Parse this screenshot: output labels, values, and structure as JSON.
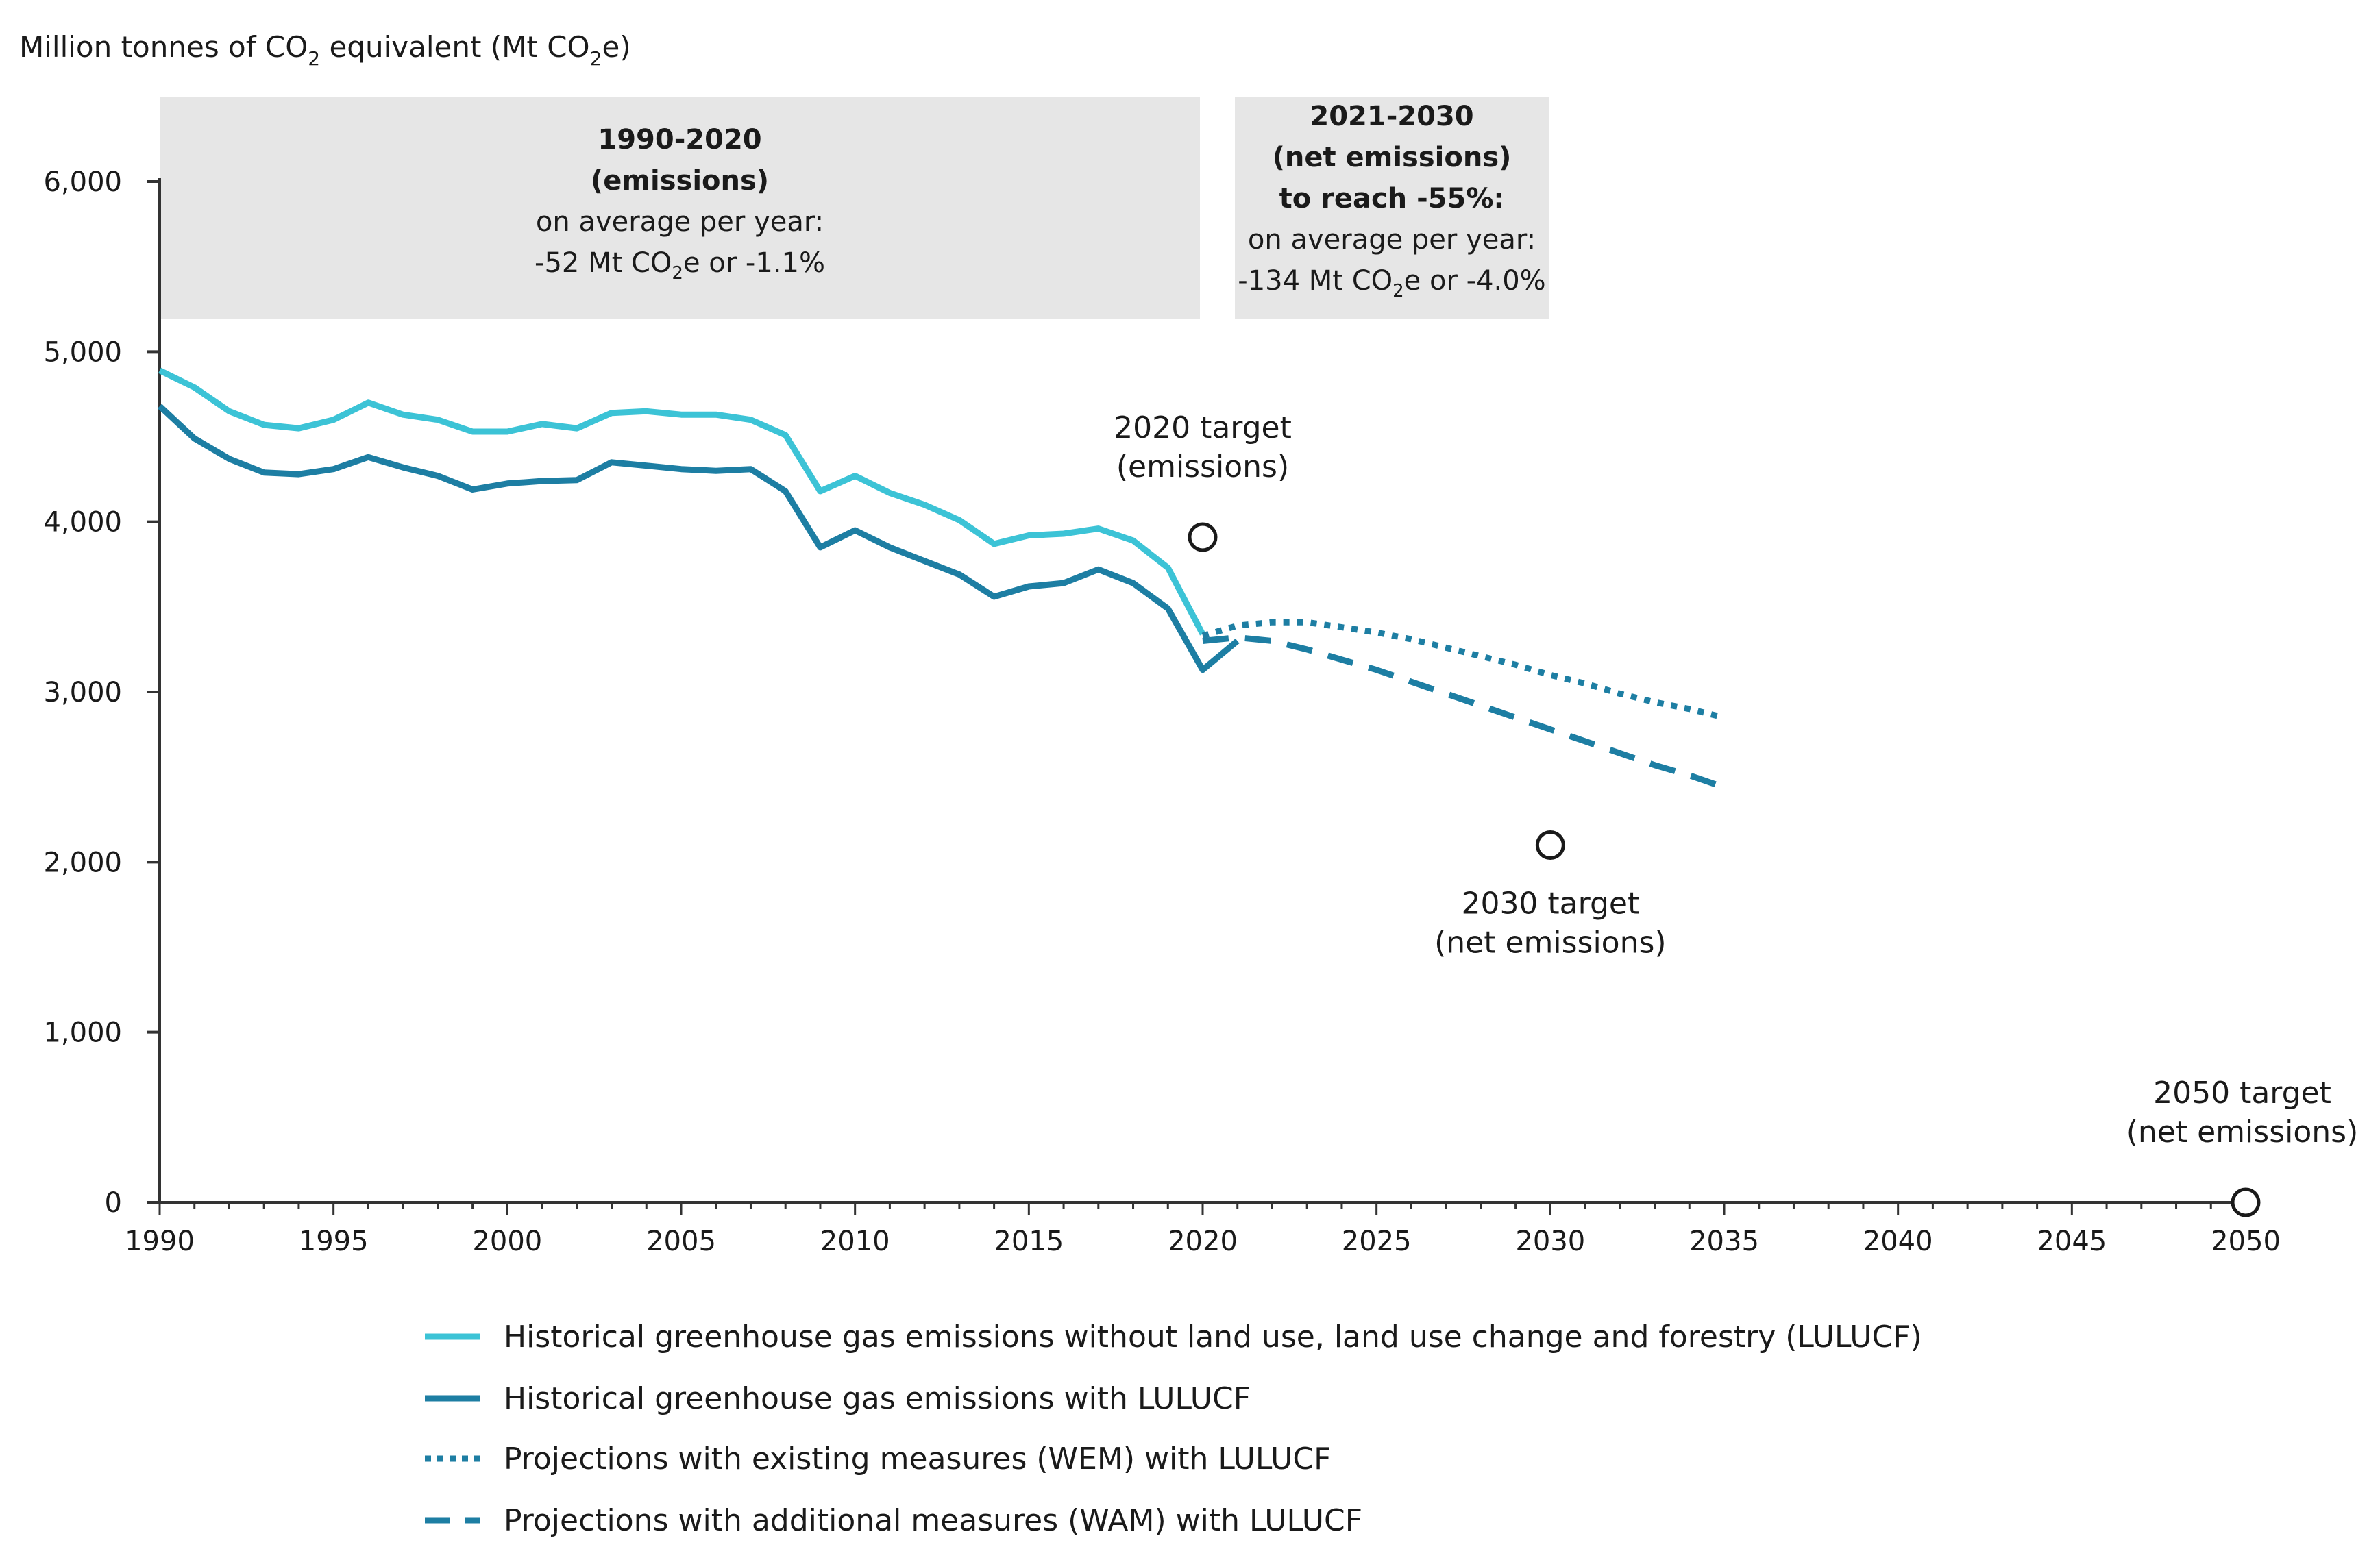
{
  "chart_data": {
    "type": "line",
    "ylabel_parts": [
      "Million tonnes of CO",
      "2",
      " equivalent (Mt CO",
      "2",
      "e)"
    ],
    "xlim": [
      1990,
      2050
    ],
    "ylim": [
      0,
      6000
    ],
    "x_ticks": [
      "1990",
      "1995",
      "2000",
      "2005",
      "2010",
      "2015",
      "2020",
      "2025",
      "2030",
      "2035",
      "2040",
      "2045",
      "2050"
    ],
    "y_ticks": [
      "0",
      "1,000",
      "2,000",
      "3,000",
      "4,000",
      "5,000",
      "6,000"
    ],
    "series": [
      {
        "name": "Historical greenhouse gas emissions without land use, land use change and forestry (LULUCF)",
        "style": "solid",
        "color": "#3cc3d6",
        "x": [
          1990,
          1991,
          1992,
          1993,
          1994,
          1995,
          1996,
          1997,
          1998,
          1999,
          2000,
          2001,
          2002,
          2003,
          2004,
          2005,
          2006,
          2007,
          2008,
          2009,
          2010,
          2011,
          2012,
          2013,
          2014,
          2015,
          2016,
          2017,
          2018,
          2019,
          2020
        ],
        "values": [
          4890,
          4790,
          4650,
          4570,
          4550,
          4600,
          4700,
          4630,
          4600,
          4530,
          4530,
          4575,
          4550,
          4640,
          4650,
          4630,
          4630,
          4600,
          4510,
          4180,
          4270,
          4170,
          4100,
          4010,
          3870,
          3920,
          3930,
          3960,
          3890,
          3730,
          3340
        ]
      },
      {
        "name": "Historical greenhouse gas emissions with LULUCF",
        "style": "solid",
        "color": "#1d7ea3",
        "x": [
          1990,
          1991,
          1992,
          1993,
          1994,
          1995,
          1996,
          1997,
          1998,
          1999,
          2000,
          2001,
          2002,
          2003,
          2004,
          2005,
          2006,
          2007,
          2008,
          2009,
          2010,
          2011,
          2012,
          2013,
          2014,
          2015,
          2016,
          2017,
          2018,
          2019,
          2020,
          2021
        ],
        "values": [
          4680,
          4490,
          4370,
          4290,
          4280,
          4310,
          4380,
          4320,
          4270,
          4190,
          4225,
          4240,
          4245,
          4350,
          4330,
          4310,
          4300,
          4310,
          4180,
          3850,
          3950,
          3850,
          3770,
          3690,
          3560,
          3620,
          3640,
          3720,
          3640,
          3490,
          3130,
          3300
        ]
      },
      {
        "name": "Projections with existing measures (WEM) with LULUCF",
        "style": "dotted",
        "color": "#1d7ea3",
        "x": [
          2020,
          2021,
          2022,
          2023,
          2024,
          2025,
          2026,
          2027,
          2028,
          2029,
          2030,
          2031,
          2032,
          2033,
          2034,
          2035
        ],
        "values": [
          3330,
          3390,
          3410,
          3410,
          3380,
          3350,
          3310,
          3260,
          3210,
          3160,
          3100,
          3050,
          2990,
          2940,
          2900,
          2850
        ]
      },
      {
        "name": "Projections with additional measures (WAM) with LULUCF",
        "style": "dashed",
        "color": "#1d7ea3",
        "x": [
          2020,
          2021,
          2022,
          2023,
          2024,
          2025,
          2026,
          2027,
          2028,
          2029,
          2030,
          2031,
          2032,
          2033,
          2034,
          2035
        ],
        "values": [
          3300,
          3320,
          3300,
          3250,
          3190,
          3130,
          3060,
          2990,
          2920,
          2850,
          2780,
          2710,
          2640,
          2570,
          2510,
          2440
        ]
      }
    ],
    "targets": [
      {
        "x": 2020,
        "y": 3910,
        "label_line1": "2020 target",
        "label_line2": "(emissions)"
      },
      {
        "x": 2030,
        "y": 2100,
        "label_line1": "2030 target",
        "label_line2": "(net emissions)"
      },
      {
        "x": 2050,
        "y": 0,
        "label_line1": "2050 target",
        "label_line2": "(net emissions)"
      }
    ],
    "annotation_boxes": [
      {
        "title1": "1990-2020",
        "title2": "(emissions)",
        "text1": "on average per year:",
        "text2_parts": [
          "-52 Mt CO",
          "2",
          "e or -1.1%"
        ]
      },
      {
        "title1": "2021-2030",
        "title2": "(net emissions)",
        "title3": "to reach -55%:",
        "text1": "on average per year:",
        "text2_parts": [
          "-134 Mt CO",
          "2",
          "e or -4.0%"
        ]
      }
    ],
    "box_color": "#e6e6e6"
  }
}
